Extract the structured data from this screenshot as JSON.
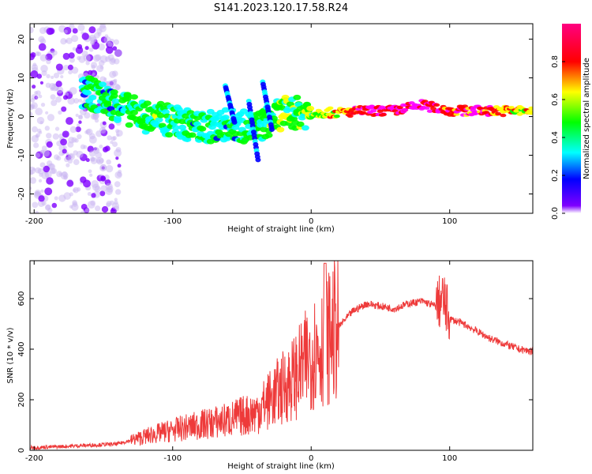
{
  "chart_data": [
    {
      "type": "heatmap",
      "title": "S141.2023.120.17.58.R24",
      "xlabel": "Height of straight line (km)",
      "ylabel": "Frequency (Hz)",
      "xlim": [
        -203,
        160
      ],
      "ylim": [
        -25,
        24
      ],
      "x_ticks": [
        -200,
        -100,
        0,
        100
      ],
      "y_ticks": [
        -20,
        -10,
        0,
        10,
        20
      ],
      "colorbar": {
        "label": "Normalized spectral amplitude",
        "range": [
          0,
          1
        ],
        "ticks": [
          "0.0",
          "0.2",
          "0.4",
          "0.6",
          "0.8"
        ],
        "colormap": "hsv-rainbow",
        "stops": [
          "#ffffff",
          "#7f00ff",
          "#0000ff",
          "#00ffff",
          "#00ff00",
          "#ffff00",
          "#ff0000",
          "#ff00ff"
        ]
      },
      "ridge": [
        {
          "x": -160,
          "freq": 6,
          "amp": 0.3
        },
        {
          "x": -140,
          "freq": 3,
          "amp": 0.3
        },
        {
          "x": -120,
          "freq": 0,
          "amp": 0.35
        },
        {
          "x": -100,
          "freq": -1,
          "amp": 0.35
        },
        {
          "x": -80,
          "freq": -3,
          "amp": 0.3
        },
        {
          "x": -60,
          "freq": -2,
          "amp": 0.3
        },
        {
          "x": -40,
          "freq": -3,
          "amp": 0.3
        },
        {
          "x": -20,
          "freq": 1,
          "amp": 0.4
        },
        {
          "x": 0,
          "freq": 1,
          "amp": 0.45
        },
        {
          "x": 20,
          "freq": 1,
          "amp": 0.6
        },
        {
          "x": 40,
          "freq": 1.5,
          "amp": 0.8
        },
        {
          "x": 60,
          "freq": 1.5,
          "amp": 0.85
        },
        {
          "x": 80,
          "freq": 3,
          "amp": 0.85
        },
        {
          "x": 100,
          "freq": 1.5,
          "amp": 0.7
        },
        {
          "x": 120,
          "freq": 1.5,
          "amp": 0.8
        },
        {
          "x": 140,
          "freq": 1.5,
          "amp": 0.6
        },
        {
          "x": 160,
          "freq": 1.5,
          "amp": 0.5
        }
      ]
    },
    {
      "type": "line",
      "xlabel": "Height of straight line (km)",
      "ylabel": "SNR (10 * v/v)",
      "xlim": [
        -203,
        160
      ],
      "ylim": [
        0,
        750
      ],
      "x_ticks": [
        -200,
        -100,
        0,
        100
      ],
      "y_ticks": [
        0,
        200,
        400,
        600
      ],
      "line_color": "#ee3a3a",
      "series": [
        {
          "x": [
            -203,
            -180,
            -160,
            -140,
            -130,
            -120,
            -100,
            -80,
            -60,
            -40,
            -30,
            -20,
            -10,
            0,
            10,
            20,
            30,
            40,
            50,
            60,
            70,
            80,
            90,
            95,
            100,
            110,
            120,
            130,
            140,
            150,
            160
          ],
          "values": [
            10,
            15,
            20,
            25,
            40,
            55,
            80,
            100,
            120,
            150,
            200,
            250,
            300,
            380,
            430,
            490,
            550,
            580,
            570,
            560,
            580,
            590,
            570,
            600,
            520,
            500,
            470,
            440,
            420,
            400,
            390
          ]
        }
      ]
    }
  ]
}
